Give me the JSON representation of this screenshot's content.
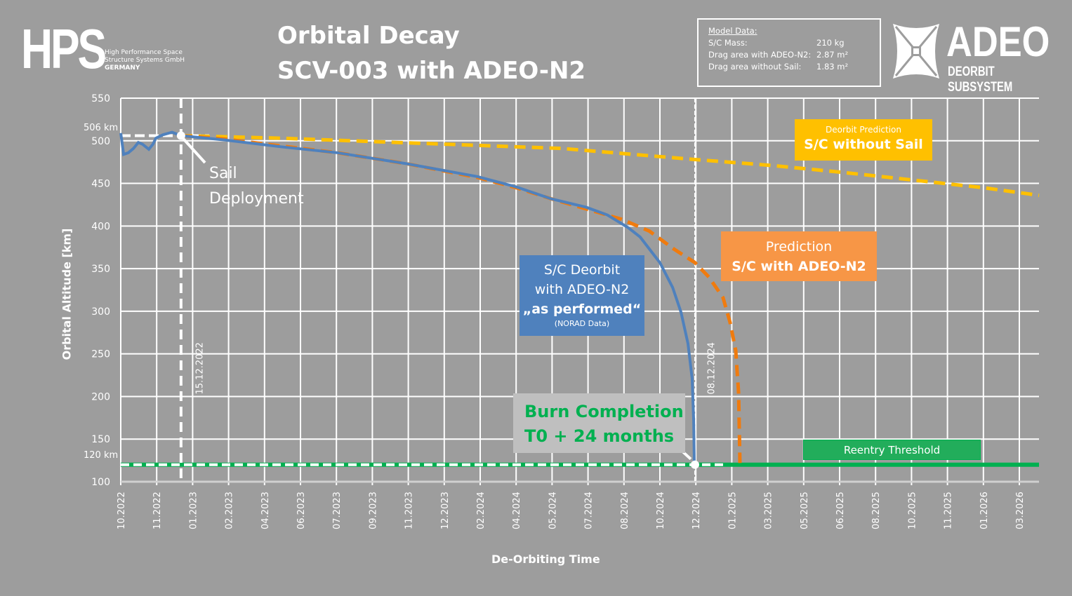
{
  "header": {
    "hps_logo": "HPS",
    "hps_sub": [
      "High Performance Space",
      "Structure Systems GmbH",
      "GERMANY"
    ],
    "title_line1": "Orbital Decay",
    "title_line2": "SCV-003 with ADEO-N2",
    "adeo_logo": "ADEO",
    "adeo_sub": "DEORBIT SUBSYSTEM"
  },
  "model_data": {
    "heading": "Model Data:",
    "rows": [
      {
        "label": "S/C Mass:",
        "value": "210 kg"
      },
      {
        "label": "Drag area with ADEO-N2:",
        "value": "2.87 m²"
      },
      {
        "label": "Drag area without Sail:",
        "value": "1.83 m²"
      }
    ]
  },
  "annotations": {
    "sail": [
      "Sail",
      "Deployment"
    ],
    "sail_date": "15.12.2022",
    "end_date": "08.12.2024",
    "start_alt": "506 km",
    "reentry_alt": "120 km",
    "burn": [
      "Burn Completion",
      "T0 + 24 months"
    ],
    "reentry": "Reentry Threshold",
    "blue_box": [
      "S/C Deorbit",
      "with ADEO-N2",
      "„as performed“",
      "(NORAD Data)"
    ],
    "orange_box": [
      "Prediction",
      "S/C with ADEO-N2"
    ],
    "yellow_box": [
      "Deorbit Prediction",
      "S/C without Sail"
    ]
  },
  "colors": {
    "blue": "#4f81bd",
    "orange": "#f07b0e",
    "yellow": "#ffc000",
    "green": "#00b050",
    "bg": "#9d9d9d"
  },
  "chart_data": {
    "type": "line",
    "xlabel": "De-Orbiting Time",
    "ylabel": "Orbital Altitude [km]",
    "x_unit": "months since 10.2022",
    "xlim": [
      0,
      41.9
    ],
    "ylim": [
      100,
      550
    ],
    "yticks": [
      100,
      150,
      200,
      250,
      300,
      350,
      400,
      450,
      500,
      550
    ],
    "xtick_labels": [
      "10.2022",
      "11.2022",
      "01.2023",
      "02.2023",
      "04.2023",
      "06.2023",
      "07.2023",
      "09.2023",
      "11.2023",
      "12.2023",
      "02.2024",
      "04.2024",
      "05.2024",
      "07.2024",
      "08.2024",
      "10.2024",
      "12.2024",
      "01.2025",
      "03.2025",
      "05.2025",
      "06.2025",
      "08.2025",
      "10.2025",
      "11.2025",
      "01.2026",
      "03.2026"
    ],
    "grid": true,
    "reference_lines": {
      "start_altitude": 506,
      "reentry_altitude": 120,
      "sail_deployment_x": 2.75,
      "end_x": 26.2
    },
    "series": [
      {
        "name": "S/C Deorbit with ADEO-N2 as performed (NORAD Data)",
        "color": "#4f81bd",
        "style": "solid",
        "x": [
          0,
          0.13,
          0.35,
          0.58,
          0.8,
          0.99,
          1.28,
          1.47,
          1.6,
          1.92,
          2.34,
          2.75,
          4.74,
          7.3,
          9.87,
          13.07,
          16.27,
          18.03,
          19.63,
          21.24,
          22.2,
          23.16,
          23.7,
          24.6,
          25.18,
          25.56,
          25.88,
          26.07,
          26.14,
          26.17
        ],
        "y": [
          509,
          484,
          486,
          491,
          498,
          496,
          490,
          496,
          503,
          507,
          510,
          506,
          501,
          493,
          486,
          473,
          458,
          446,
          432,
          422,
          413,
          398,
          387,
          357,
          328,
          299,
          262,
          221,
          172,
          122
        ]
      },
      {
        "name": "Prediction S/C with ADEO-N2",
        "color": "#f07b0e",
        "style": "dashed",
        "x": [
          2.75,
          4.74,
          7.3,
          9.87,
          13.07,
          16.27,
          18.03,
          19.63,
          21.24,
          22.84,
          24.12,
          25.24,
          26.2,
          26.84,
          27.48,
          27.8,
          28.06,
          28.19,
          28.25
        ],
        "y": [
          506,
          502,
          494,
          486,
          473,
          457,
          445,
          432,
          420,
          408,
          394,
          373,
          357,
          340,
          316,
          287,
          254,
          204,
          122
        ]
      },
      {
        "name": "Deorbit Prediction S/C without Sail",
        "color": "#ffc000",
        "style": "dashed",
        "x": [
          2.75,
          7.3,
          13.71,
          20.12,
          26.2,
          29.72,
          32.93,
          36.13,
          39.33,
          41.9
        ],
        "y": [
          506,
          503,
          497,
          491,
          478,
          471,
          463,
          454,
          445,
          436
        ]
      }
    ]
  }
}
